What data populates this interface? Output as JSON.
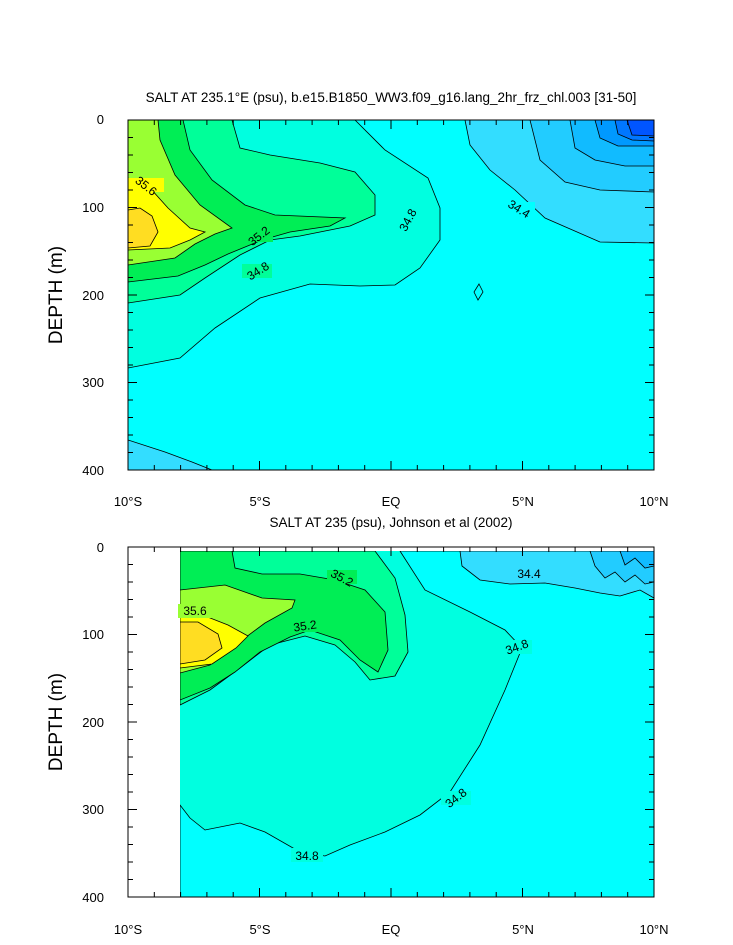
{
  "chart_data": [
    {
      "type": "contour",
      "title": "SALT AT 235.1°E (psu), b.e15.B1850_WW3.f09_g16.lang_2hr_frz_chl.003 [31-50]",
      "ylabel": "DEPTH (m)",
      "xlim": [
        -10,
        10
      ],
      "ylim": [
        0,
        400
      ],
      "y_reversed": true,
      "x_ticks": [
        -10,
        -5,
        0,
        5,
        10
      ],
      "x_tick_labels": [
        "10°S",
        "5°S",
        "EQ",
        "5°N",
        "10°N"
      ],
      "y_ticks": [
        0,
        100,
        200,
        300,
        400
      ],
      "y_tick_labels": [
        "0",
        "100",
        "200",
        "300",
        "400"
      ],
      "contour_labels": [
        {
          "text": "35.6",
          "lat": -9.5,
          "depth": 82
        },
        {
          "text": "35.2",
          "lat": -5.1,
          "depth": 133
        },
        {
          "text": "34.8",
          "lat": -5.1,
          "depth": 173
        },
        {
          "text": "34.8",
          "lat": 0.5,
          "depth": 118
        },
        {
          "text": "34.4",
          "lat": 4.8,
          "depth": 105
        }
      ],
      "colors": {
        "le_34_4": "#33ddff",
        "34_8": "#00ffe0",
        "35_0": "#00ff99",
        "35_2": "#00ee55",
        "35_4": "#99ff33",
        "35_6": "#ffff00",
        "35_8": "#ffdd22"
      }
    },
    {
      "type": "contour",
      "title": "SALT AT 235 (psu), Johnson et al (2002)",
      "ylabel": "DEPTH (m)",
      "xlim": [
        -10,
        10
      ],
      "ylim": [
        0,
        400
      ],
      "y_reversed": true,
      "data_x_range": [
        -8,
        10
      ],
      "data_depth_range": [
        8,
        400
      ],
      "x_ticks": [
        -10,
        -5,
        0,
        5,
        10
      ],
      "x_tick_labels": [
        "10°S",
        "5°S",
        "EQ",
        "5°N",
        "10°N"
      ],
      "y_ticks": [
        0,
        100,
        200,
        300,
        400
      ],
      "y_tick_labels": [
        "0",
        "100",
        "200",
        "300",
        "400"
      ],
      "contour_labels": [
        {
          "text": "35.2",
          "lat": -2.0,
          "depth": 38
        },
        {
          "text": "35.6",
          "lat": -7.8,
          "depth": 72
        },
        {
          "text": "35.2",
          "lat": -3.2,
          "depth": 90
        },
        {
          "text": "34.8",
          "lat": 4.7,
          "depth": 112
        },
        {
          "text": "34.4",
          "lat": 5.3,
          "depth": 30
        },
        {
          "text": "34.8",
          "lat": 2.5,
          "depth": 285
        },
        {
          "text": "34.8",
          "lat": -3.3,
          "depth": 348
        }
      ],
      "colors": {
        "le_34_4": "#33ddff",
        "34_8": "#00ffe0",
        "35_0": "#00ff99",
        "35_2": "#00ee55",
        "35_4": "#99ff33",
        "35_6": "#ffff00",
        "35_8": "#ffdd22"
      }
    }
  ]
}
